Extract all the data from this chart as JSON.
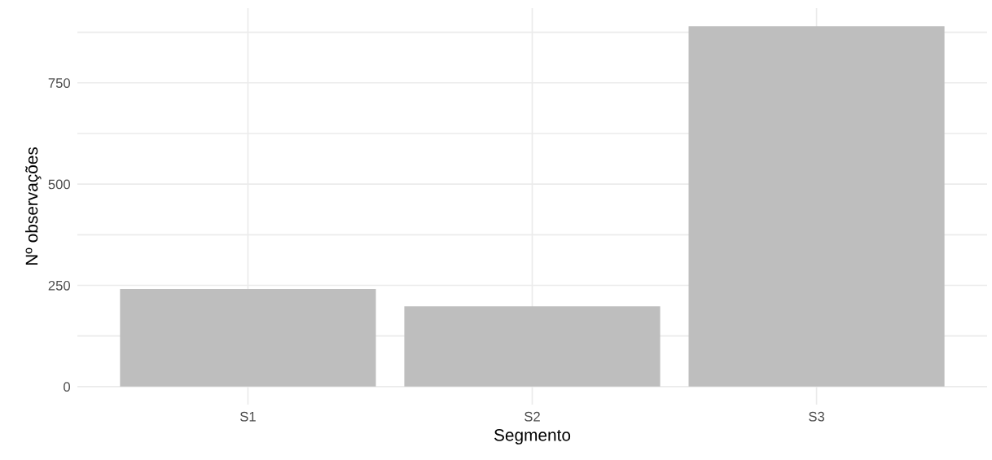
{
  "chart_data": {
    "type": "bar",
    "xlabel": "Segmento",
    "ylabel": "Nº observações",
    "categories": [
      "S1",
      "S2",
      "S3"
    ],
    "values": [
      241,
      198,
      890
    ],
    "color": "#bebebe",
    "ylim": [
      -44.5,
      934.5
    ],
    "yticks": [
      0,
      {
        "value": 125,
        "label": null
      },
      250,
      {
        "value": 375,
        "label": null
      },
      500,
      {
        "value": 625,
        "label": null
      },
      750,
      {
        "value": 875,
        "label": null
      }
    ],
    "grid": true
  }
}
